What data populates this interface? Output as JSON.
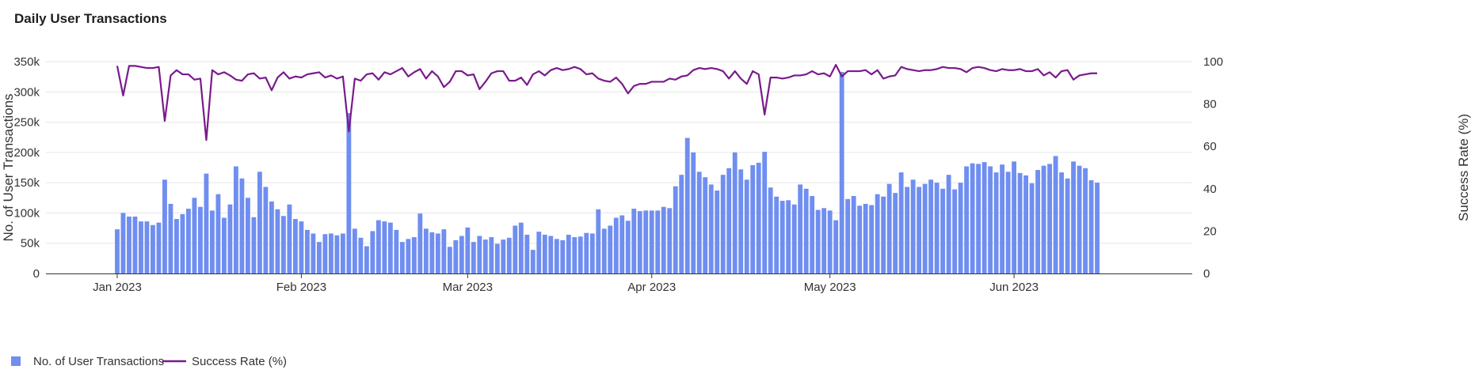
{
  "chart_title": "Daily User Transactions",
  "colors": {
    "bar": "#6f8ef0",
    "line": "#7a1a8c",
    "grid": "#e6e6e6",
    "axis": "#333333"
  },
  "chart_data": {
    "type": "bar",
    "title": "Daily User Transactions",
    "x_label": "",
    "y_label": "No. of User Transactions",
    "y2_label": "Success Rate (%)",
    "ylim": [
      0,
      350000
    ],
    "y2lim": [
      0,
      100
    ],
    "x_range": [
      "2022-12-20",
      "2023-07-01"
    ],
    "y_ticks": [
      0,
      50000,
      100000,
      150000,
      200000,
      250000,
      300000,
      350000
    ],
    "y_tick_labels": [
      "0",
      "50k",
      "100k",
      "150k",
      "200k",
      "250k",
      "300k",
      "350k"
    ],
    "y2_ticks": [
      0,
      20,
      40,
      60,
      80,
      100
    ],
    "y2_tick_labels": [
      "0",
      "20",
      "40",
      "60",
      "80",
      "100"
    ],
    "x_ticks": [
      "2023-01-01",
      "2023-02-01",
      "2023-03-01",
      "2023-04-01",
      "2023-05-01",
      "2023-06-01"
    ],
    "x_tick_labels": [
      "Jan 2023",
      "Feb 2023",
      "Mar 2023",
      "Apr 2023",
      "May 2023",
      "Jun 2023"
    ],
    "legend": [
      "No. of User Transactions",
      "Success Rate (%)"
    ],
    "legend_position": "bottom-left",
    "start_date": "2023-01-01",
    "series": [
      {
        "name": "No. of User Transactions",
        "kind": "bar",
        "axis": "left",
        "values": [
          73000,
          100000,
          94000,
          94000,
          86000,
          86000,
          80000,
          84000,
          155000,
          115000,
          90000,
          98000,
          107000,
          125000,
          110000,
          165000,
          104000,
          131000,
          92000,
          114000,
          177000,
          157000,
          125000,
          93000,
          168000,
          143000,
          119000,
          106000,
          95000,
          114000,
          90000,
          86000,
          72000,
          66000,
          52000,
          65000,
          66000,
          63000,
          66000,
          265000,
          74000,
          59000,
          45000,
          70000,
          88000,
          86000,
          84000,
          72000,
          52000,
          57000,
          60000,
          99000,
          74000,
          68000,
          66000,
          73000,
          44000,
          55000,
          62000,
          76000,
          52000,
          62000,
          56000,
          60000,
          49000,
          56000,
          59000,
          79000,
          84000,
          64000,
          39000,
          69000,
          64000,
          62000,
          57000,
          55000,
          64000,
          60000,
          61000,
          67000,
          66000,
          106000,
          74000,
          79000,
          92000,
          96000,
          87000,
          107000,
          103000,
          104000,
          104000,
          104000,
          110000,
          108000,
          144000,
          163000,
          224000,
          200000,
          168000,
          159000,
          147000,
          137000,
          163000,
          174000,
          200000,
          172000,
          155000,
          179000,
          183000,
          201000,
          142000,
          127000,
          120000,
          121000,
          114000,
          147000,
          140000,
          128000,
          105000,
          108000,
          104000,
          88000,
          333000,
          123000,
          128000,
          112000,
          115000,
          113000,
          131000,
          127000,
          148000,
          133000,
          167000,
          143000,
          155000,
          143000,
          148000,
          155000,
          150000,
          140000,
          163000,
          139000,
          150000,
          177000,
          182000,
          181000,
          184000,
          177000,
          167000,
          180000,
          168000,
          185000,
          166000,
          162000,
          149000,
          171000,
          178000,
          181000,
          194000,
          167000,
          157000,
          185000,
          178000,
          174000,
          154000,
          150000
        ]
      },
      {
        "name": "Success Rate (%)",
        "kind": "line",
        "axis": "right",
        "values": [
          98,
          84,
          98,
          98,
          97.5,
          97,
          97,
          97.5,
          72,
          93.5,
          96,
          94,
          94,
          91.5,
          92,
          63,
          96,
          94,
          95,
          93.5,
          91.5,
          91,
          94,
          94.5,
          92,
          92.5,
          86.5,
          92.5,
          95,
          92,
          93,
          92.5,
          94,
          94.5,
          95,
          92.5,
          93.5,
          92,
          93,
          67,
          92,
          91,
          94,
          94.5,
          91.5,
          95,
          94,
          95.5,
          97,
          93,
          95,
          96.5,
          92,
          95.5,
          93,
          88,
          90.5,
          95.5,
          95.5,
          93.5,
          94,
          87,
          90.5,
          94.5,
          95.5,
          95.5,
          91,
          91,
          92.5,
          89,
          94,
          95.5,
          93.5,
          96,
          97,
          96,
          96.5,
          97.5,
          96.5,
          94,
          94.5,
          92,
          91,
          90.5,
          92.5,
          89.5,
          85,
          88.5,
          89.5,
          89.5,
          90.5,
          90.5,
          90.5,
          92,
          91.5,
          93,
          93.5,
          96,
          97,
          96.5,
          97,
          96.5,
          95.5,
          92,
          95.5,
          92,
          89.5,
          95.5,
          94,
          75,
          92.5,
          92.5,
          92,
          92.5,
          93.5,
          93.5,
          94,
          95.5,
          94,
          94.5,
          93,
          98.5,
          93,
          95.5,
          95.5,
          95.5,
          96,
          94,
          96,
          92,
          93,
          93.5,
          97.5,
          96.5,
          96,
          95.5,
          96,
          96,
          96.5,
          97.5,
          97,
          97,
          96.5,
          95,
          97,
          97.5,
          97,
          96,
          95.5,
          96.5,
          96,
          96,
          96.5,
          95.5,
          95.5,
          96.5,
          93.5,
          95,
          92.5,
          95.5,
          96,
          91.5,
          93.5,
          94,
          94.5,
          94.5
        ]
      }
    ]
  }
}
